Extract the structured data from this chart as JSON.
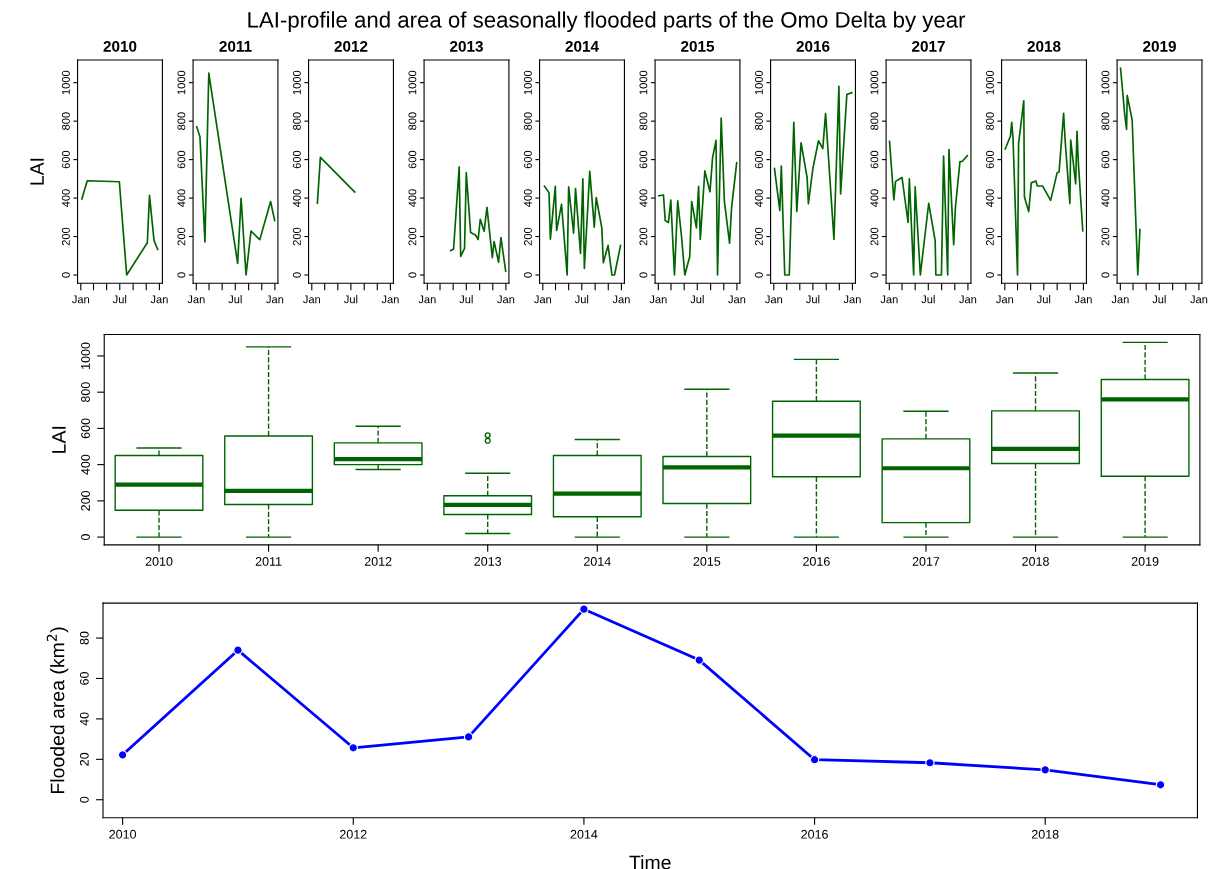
{
  "chart_data": [
    {
      "type": "line",
      "title": "2010",
      "ylabel": "LAI",
      "annotations": [
        "LAI-profile and area of seasonally flooded parts of the Omo Delta by year"
      ],
      "color": "#006400",
      "x": [
        "2010-01-06",
        "2010-01-31",
        "2010-06-29",
        "2010-08-02",
        "2010-11-06",
        "2010-11-16",
        "2010-12-07",
        "2010-12-24"
      ],
      "values": [
        395,
        490,
        485,
        0,
        168,
        414,
        180,
        133
      ],
      "xlim": [
        "2009-12-17",
        "2011-01-15"
      ],
      "xticks": [
        {
          "value": "2010-01-01",
          "label": "Jan"
        },
        {
          "value": "2010-03-01",
          "label": null
        },
        {
          "value": "2010-05-01",
          "label": null
        },
        {
          "value": "2010-07-01",
          "label": "Jul"
        },
        {
          "value": "2010-09-01",
          "label": null
        },
        {
          "value": "2010-11-01",
          "label": null
        },
        {
          "value": "2011-01-01",
          "label": "Jan"
        }
      ],
      "ylim": [
        -43,
        1118
      ],
      "yticks": [
        0,
        200,
        400,
        600,
        800,
        1000
      ]
    },
    {
      "type": "line",
      "title": "2011",
      "color": "#006400",
      "x": [
        "2011-01-03",
        "2011-01-18",
        "2011-02-10",
        "2011-02-28",
        "2011-07-12",
        "2011-07-28",
        "2011-08-20",
        "2011-09-12",
        "2011-10-23",
        "2011-12-12",
        "2011-12-31"
      ],
      "values": [
        770,
        719,
        172,
        1050,
        60,
        399,
        0,
        228,
        184,
        382,
        283
      ],
      "xlim": [
        "2010-12-17",
        "2012-01-15"
      ],
      "xticks": [
        {
          "value": "2011-01-01",
          "label": "Jan"
        },
        {
          "value": "2011-03-01",
          "label": null
        },
        {
          "value": "2011-05-01",
          "label": null
        },
        {
          "value": "2011-07-01",
          "label": "Jul"
        },
        {
          "value": "2011-09-01",
          "label": null
        },
        {
          "value": "2011-11-01",
          "label": null
        },
        {
          "value": "2012-01-01",
          "label": "Jan"
        }
      ],
      "ylim": [
        -43,
        1118
      ],
      "yticks": [
        0,
        200,
        400,
        600,
        800,
        1000
      ]
    },
    {
      "type": "line",
      "title": "2012",
      "color": "#006400",
      "x": [
        "2012-01-27",
        "2012-02-10",
        "2012-07-19"
      ],
      "values": [
        373,
        612,
        431
      ],
      "xlim": [
        "2011-12-17",
        "2013-01-15"
      ],
      "xticks": [
        {
          "value": "2012-01-01",
          "label": "Jan"
        },
        {
          "value": "2012-03-01",
          "label": null
        },
        {
          "value": "2012-05-01",
          "label": null
        },
        {
          "value": "2012-07-01",
          "label": "Jul"
        },
        {
          "value": "2012-09-01",
          "label": null
        },
        {
          "value": "2012-11-01",
          "label": null
        },
        {
          "value": "2013-01-01",
          "label": "Jan"
        }
      ],
      "ylim": [
        -43,
        1118
      ],
      "yticks": [
        0,
        200,
        400,
        600,
        800,
        1000
      ]
    },
    {
      "type": "line",
      "title": "2013",
      "color": "#006400",
      "x": [
        "2013-04-20",
        "2013-05-03",
        "2013-05-29",
        "2013-06-05",
        "2013-06-23",
        "2013-07-01",
        "2013-07-21",
        "2013-08-13",
        "2013-08-25",
        "2013-09-04",
        "2013-09-22",
        "2013-10-05",
        "2013-10-30",
        "2013-11-07",
        "2013-11-28",
        "2013-12-09",
        "2013-12-31"
      ],
      "values": [
        127,
        135,
        562,
        97,
        139,
        532,
        221,
        208,
        184,
        290,
        228,
        352,
        90,
        174,
        67,
        195,
        19
      ],
      "xlim": [
        "2012-12-17",
        "2014-01-15"
      ],
      "xticks": [
        {
          "value": "2013-01-01",
          "label": "Jan"
        },
        {
          "value": "2013-03-01",
          "label": null
        },
        {
          "value": "2013-05-01",
          "label": null
        },
        {
          "value": "2013-07-01",
          "label": "Jul"
        },
        {
          "value": "2013-09-01",
          "label": null
        },
        {
          "value": "2013-11-01",
          "label": null
        },
        {
          "value": "2014-01-01",
          "label": "Jan"
        }
      ],
      "ylim": [
        -43,
        1118
      ],
      "yticks": [
        0,
        200,
        400,
        600,
        800,
        1000
      ]
    },
    {
      "type": "line",
      "title": "2014",
      "color": "#006400",
      "x": [
        "2014-01-09",
        "2014-01-30",
        "2014-02-05",
        "2014-02-28",
        "2014-03-06",
        "2014-03-29",
        "2014-04-24",
        "2014-05-01",
        "2014-05-24",
        "2014-06-02",
        "2014-06-25",
        "2014-07-06",
        "2014-07-13",
        "2014-08-07",
        "2014-08-28",
        "2014-09-06",
        "2014-10-02",
        "2014-10-09",
        "2014-10-31",
        "2014-11-18",
        "2014-11-30",
        "2014-12-28"
      ],
      "values": [
        462,
        427,
        187,
        461,
        232,
        367,
        0,
        459,
        217,
        449,
        112,
        500,
        34,
        539,
        249,
        403,
        245,
        64,
        154,
        0,
        0,
        154
      ],
      "xlim": [
        "2013-12-17",
        "2015-01-15"
      ],
      "xticks": [
        {
          "value": "2014-01-01",
          "label": "Jan"
        },
        {
          "value": "2014-03-01",
          "label": null
        },
        {
          "value": "2014-05-01",
          "label": null
        },
        {
          "value": "2014-07-01",
          "label": "Jul"
        },
        {
          "value": "2014-09-01",
          "label": null
        },
        {
          "value": "2014-11-01",
          "label": null
        },
        {
          "value": "2015-01-01",
          "label": "Jan"
        }
      ],
      "ylim": [
        -43,
        1118
      ],
      "yticks": [
        0,
        200,
        400,
        600,
        800,
        1000
      ]
    },
    {
      "type": "line",
      "title": "2015",
      "color": "#006400",
      "x": [
        "2015-01-04",
        "2015-01-25",
        "2015-02-02",
        "2015-02-17",
        "2015-02-28",
        "2015-03-17",
        "2015-04-01",
        "2015-04-19",
        "2015-05-04",
        "2015-05-27",
        "2015-06-05",
        "2015-06-27",
        "2015-07-07",
        "2015-07-15",
        "2015-08-05",
        "2015-08-29",
        "2015-09-10",
        "2015-09-26",
        "2015-10-03",
        "2015-10-20",
        "2015-11-04",
        "2015-11-28",
        "2015-12-07",
        "2015-12-31"
      ],
      "values": [
        412,
        416,
        283,
        273,
        390,
        0,
        386,
        199,
        0,
        96,
        382,
        245,
        461,
        185,
        541,
        433,
        610,
        700,
        0,
        816,
        382,
        165,
        348,
        584
      ],
      "xlim": [
        "2014-12-17",
        "2016-01-15"
      ],
      "xticks": [
        {
          "value": "2015-01-01",
          "label": "Jan"
        },
        {
          "value": "2015-03-01",
          "label": null
        },
        {
          "value": "2015-05-01",
          "label": null
        },
        {
          "value": "2015-07-01",
          "label": "Jul"
        },
        {
          "value": "2015-09-01",
          "label": null
        },
        {
          "value": "2015-11-01",
          "label": null
        },
        {
          "value": "2016-01-01",
          "label": "Jan"
        }
      ],
      "ylim": [
        -43,
        1118
      ],
      "yticks": [
        0,
        200,
        400,
        600,
        800,
        1000
      ]
    },
    {
      "type": "line",
      "title": "2016",
      "color": "#006400",
      "x": [
        "2016-01-04",
        "2016-01-29",
        "2016-02-05",
        "2016-02-21",
        "2016-03-13",
        "2016-04-03",
        "2016-04-17",
        "2016-05-07",
        "2016-06-04",
        "2016-06-10",
        "2016-07-01",
        "2016-07-27",
        "2016-08-16",
        "2016-08-29",
        "2016-10-07",
        "2016-10-30",
        "2016-11-07",
        "2016-12-06",
        "2016-12-29"
      ],
      "values": [
        554,
        335,
        566,
        0,
        0,
        794,
        330,
        687,
        507,
        371,
        554,
        698,
        657,
        839,
        185,
        981,
        421,
        938,
        948
      ],
      "xlim": [
        "2015-12-17",
        "2017-01-15"
      ],
      "xticks": [
        {
          "value": "2016-01-01",
          "label": "Jan"
        },
        {
          "value": "2016-03-01",
          "label": null
        },
        {
          "value": "2016-05-01",
          "label": null
        },
        {
          "value": "2016-07-01",
          "label": "Jul"
        },
        {
          "value": "2016-09-01",
          "label": null
        },
        {
          "value": "2016-11-01",
          "label": null
        },
        {
          "value": "2017-01-01",
          "label": "Jan"
        }
      ],
      "ylim": [
        -43,
        1118
      ],
      "yticks": [
        0,
        200,
        400,
        600,
        800,
        1000
      ]
    },
    {
      "type": "line",
      "title": "2017",
      "color": "#006400",
      "x": [
        "2017-01-02",
        "2017-01-22",
        "2017-01-30",
        "2017-03-01",
        "2017-03-29",
        "2017-04-04",
        "2017-04-24",
        "2017-05-01",
        "2017-05-25",
        "2017-07-03",
        "2017-08-02",
        "2017-08-05",
        "2017-08-31",
        "2017-09-10",
        "2017-09-29",
        "2017-10-05",
        "2017-10-27",
        "2017-11-04",
        "2017-11-25",
        "2017-12-05",
        "2017-12-29"
      ],
      "values": [
        695,
        391,
        487,
        507,
        273,
        500,
        0,
        459,
        0,
        373,
        178,
        0,
        0,
        618,
        0,
        652,
        157,
        352,
        590,
        590,
        620
      ],
      "xlim": [
        "2016-12-17",
        "2018-01-15"
      ],
      "xticks": [
        {
          "value": "2017-01-01",
          "label": "Jan"
        },
        {
          "value": "2017-03-01",
          "label": null
        },
        {
          "value": "2017-05-01",
          "label": null
        },
        {
          "value": "2017-07-01",
          "label": "Jul"
        },
        {
          "value": "2017-09-01",
          "label": null
        },
        {
          "value": "2017-11-01",
          "label": null
        },
        {
          "value": "2018-01-01",
          "label": "Jan"
        }
      ],
      "ylim": [
        -43,
        1118
      ],
      "yticks": [
        0,
        200,
        400,
        600,
        800,
        1000
      ]
    },
    {
      "type": "line",
      "title": "2018",
      "color": "#006400",
      "x": [
        "2018-01-03",
        "2018-01-27",
        "2018-02-02",
        "2018-02-08",
        "2018-03-01",
        "2018-03-06",
        "2018-03-30",
        "2018-04-02",
        "2018-04-22",
        "2018-05-04",
        "2018-05-25",
        "2018-06-01",
        "2018-06-25",
        "2018-08-02",
        "2018-09-01",
        "2018-09-10",
        "2018-10-01",
        "2018-10-09",
        "2018-10-30",
        "2018-11-03",
        "2018-11-26",
        "2018-12-02",
        "2018-12-09",
        "2018-12-29"
      ],
      "values": [
        655,
        723,
        794,
        713,
        0,
        684,
        906,
        406,
        330,
        479,
        489,
        463,
        463,
        388,
        532,
        536,
        841,
        685,
        371,
        702,
        474,
        747,
        573,
        230
      ],
      "xlim": [
        "2017-12-17",
        "2019-01-15"
      ],
      "xticks": [
        {
          "value": "2018-01-01",
          "label": "Jan"
        },
        {
          "value": "2018-03-01",
          "label": null
        },
        {
          "value": "2018-05-01",
          "label": null
        },
        {
          "value": "2018-07-01",
          "label": "Jul"
        },
        {
          "value": "2018-09-01",
          "label": null
        },
        {
          "value": "2018-11-01",
          "label": null
        },
        {
          "value": "2019-01-01",
          "label": "Jan"
        }
      ],
      "ylim": [
        -43,
        1118
      ],
      "yticks": [
        0,
        200,
        400,
        600,
        800,
        1000
      ]
    },
    {
      "type": "line",
      "title": "2019",
      "color": "#006400",
      "x": [
        "2019-01-02",
        "2019-01-21",
        "2019-01-30",
        "2019-02-02",
        "2019-02-25",
        "2019-03-23",
        "2019-04-02"
      ],
      "values": [
        1075,
        839,
        757,
        934,
        805,
        0,
        236
      ],
      "xlim": [
        "2018-12-17",
        "2020-01-15"
      ],
      "xticks": [
        {
          "value": "2019-01-01",
          "label": "Jan"
        },
        {
          "value": "2019-03-01",
          "label": null
        },
        {
          "value": "2019-05-01",
          "label": null
        },
        {
          "value": "2019-07-01",
          "label": "Jul"
        },
        {
          "value": "2019-09-01",
          "label": null
        },
        {
          "value": "2019-11-01",
          "label": null
        },
        {
          "value": "2020-01-01",
          "label": "Jan"
        }
      ],
      "ylim": [
        -43,
        1118
      ],
      "yticks": [
        0,
        200,
        400,
        600,
        800,
        1000
      ]
    },
    {
      "type": "box",
      "ylabel": "LAI",
      "color": "#006400",
      "categories": [
        "2010",
        "2011",
        "2012",
        "2013",
        "2014",
        "2015",
        "2016",
        "2017",
        "2018",
        "2019"
      ],
      "boxes": [
        {
          "low": 0,
          "q1": 148,
          "median": 290,
          "q3": 450,
          "high": 492
        },
        {
          "low": 0,
          "q1": 180,
          "median": 255,
          "q3": 558,
          "high": 1050
        },
        {
          "low": 373,
          "q1": 400,
          "median": 430,
          "q3": 520,
          "high": 612
        },
        {
          "low": 20,
          "q1": 125,
          "median": 178,
          "q3": 228,
          "high": 352,
          "outliers": [
            532,
            562
          ]
        },
        {
          "low": 0,
          "q1": 112,
          "median": 240,
          "q3": 450,
          "high": 539
        },
        {
          "low": 0,
          "q1": 185,
          "median": 385,
          "q3": 445,
          "high": 816
        },
        {
          "low": 0,
          "q1": 333,
          "median": 560,
          "q3": 750,
          "high": 981
        },
        {
          "low": 0,
          "q1": 80,
          "median": 380,
          "q3": 542,
          "high": 695
        },
        {
          "low": 0,
          "q1": 406,
          "median": 487,
          "q3": 697,
          "high": 906
        },
        {
          "low": 0,
          "q1": 336,
          "median": 760,
          "q3": 870,
          "high": 1075
        }
      ],
      "ylim": [
        -43,
        1118
      ],
      "yticks": [
        0,
        200,
        400,
        600,
        800,
        1000
      ]
    },
    {
      "type": "line",
      "xlabel": "Time",
      "ylabel": "Flooded area (km$^{2}$)",
      "color": "#0000ff",
      "marker": "circle",
      "x": [
        2010,
        2011,
        2012,
        2013,
        2014,
        2015,
        2016,
        2017,
        2018,
        2019
      ],
      "values": [
        22.2,
        74,
        25.7,
        31.1,
        94.3,
        69.1,
        19.8,
        18.3,
        14.8,
        7.4
      ],
      "xlim": [
        2009.83,
        2019.32
      ],
      "xticks": [
        2010,
        2012,
        2014,
        2016,
        2018
      ],
      "ylim": [
        -8.9,
        97.3
      ],
      "yticks": [
        0,
        20,
        40,
        60,
        80
      ]
    }
  ]
}
